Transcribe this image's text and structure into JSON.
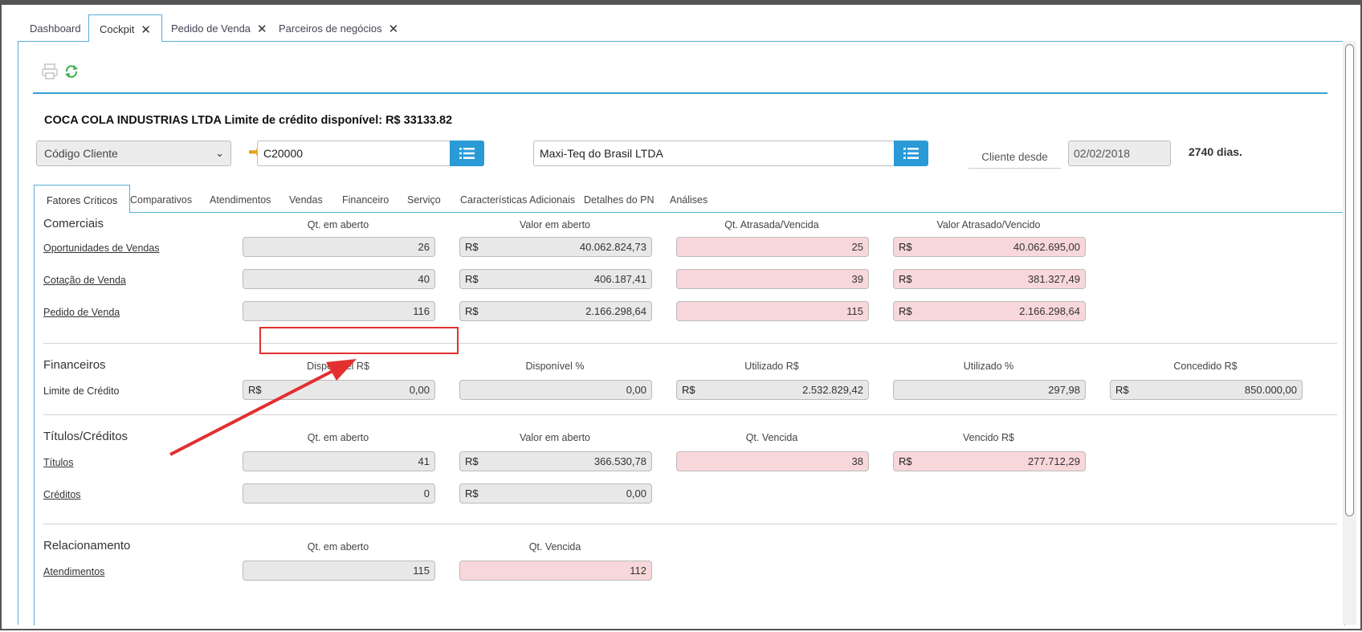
{
  "tabs": [
    {
      "label": "Dashboard",
      "closable": false
    },
    {
      "label": "Cockpit",
      "closable": true,
      "active": true
    },
    {
      "label": "Pedido de Venda",
      "closable": true
    },
    {
      "label": "Parceiros de negócios",
      "closable": true
    }
  ],
  "close_glyph": "✕",
  "toolbar": {
    "print_icon": "printer-icon",
    "refresh_icon": "refresh-icon"
  },
  "header": {
    "title": "COCA COLA INDUSTRIAS LTDA Limite de crédito disponível: R$ 33133.82"
  },
  "search": {
    "select_label": "Código Cliente",
    "code_value": "C20000",
    "company_value": "Maxi-Teq do Brasil LTDA",
    "since_label": "Cliente desde",
    "since_date": "02/02/2018",
    "days": "2740 dias."
  },
  "subtabs": [
    "Fatores Críticos",
    "Comparativos",
    "Atendimentos",
    "Vendas",
    "Financeiro",
    "Serviço",
    "Características Adicionais",
    "Detalhes do PN",
    "Análises"
  ],
  "currency": "R$",
  "comerciais": {
    "title": "Comerciais",
    "headers": [
      "Qt. em aberto",
      "Valor em aberto",
      "Qt. Atrasada/Vencida",
      "Valor Atrasado/Vencido"
    ],
    "rows": [
      {
        "label": "Oportunidades de Vendas",
        "qt": "26",
        "valor": "40.062.824,73",
        "qt_atr": "25",
        "valor_atr": "40.062.695,00"
      },
      {
        "label": "Cotação de Venda",
        "qt": "40",
        "valor": "406.187,41",
        "qt_atr": "39",
        "valor_atr": "381.327,49"
      },
      {
        "label": "Pedido de Venda",
        "qt": "116",
        "valor": "2.166.298,64",
        "qt_atr": "115",
        "valor_atr": "2.166.298,64"
      }
    ]
  },
  "financeiros": {
    "title": "Financeiros",
    "headers": [
      "Disponível R$",
      "Disponível %",
      "Utilizado R$",
      "Utilizado %",
      "Concedido R$"
    ],
    "row": {
      "label": "Limite de Crédito",
      "disp_rs": "0,00",
      "disp_pct": "0,00",
      "util_rs": "2.532.829,42",
      "util_pct": "297,98",
      "conc_rs": "850.000,00"
    }
  },
  "titulos": {
    "title": "Títulos/Créditos",
    "headers": [
      "Qt. em aberto",
      "Valor em aberto",
      "Qt. Vencida",
      "Vencido R$"
    ],
    "rows": [
      {
        "label": "Títulos",
        "qt": "41",
        "valor": "366.530,78",
        "qt_venc": "38",
        "venc": "277.712,29"
      },
      {
        "label": "Créditos",
        "qt": "0",
        "valor": "0,00"
      }
    ]
  },
  "relacionamento": {
    "title": "Relacionamento",
    "headers": [
      "Qt. em aberto",
      "Qt. Vencida"
    ],
    "row": {
      "label": "Atendimentos",
      "qt": "115",
      "qt_venc": "112"
    }
  },
  "colors": {
    "accent": "#2a9ad6",
    "overdue": "#f8d7da",
    "highlight": "#e23030"
  }
}
